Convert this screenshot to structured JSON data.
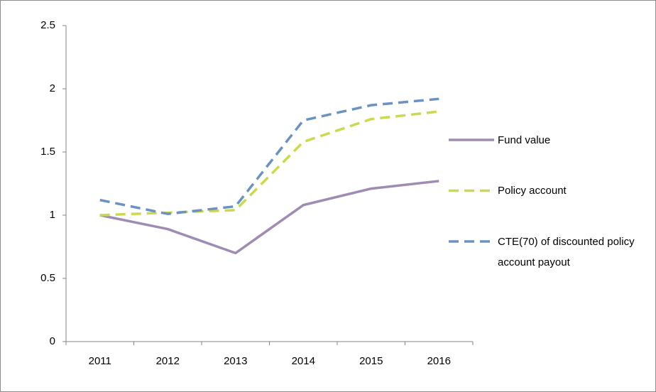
{
  "chart_data": {
    "type": "line",
    "categories": [
      "2011",
      "2012",
      "2013",
      "2014",
      "2015",
      "2016"
    ],
    "series": [
      {
        "name": "Fund value",
        "color": "#9f8bb3",
        "dash": false,
        "values": [
          1.0,
          0.89,
          0.7,
          1.08,
          1.21,
          1.27
        ]
      },
      {
        "name": "Policy account",
        "color": "#ccd84e",
        "dash": true,
        "values": [
          1.0,
          1.02,
          1.04,
          1.58,
          1.76,
          1.82
        ]
      },
      {
        "name": "CTE(70) of discounted policy account payout",
        "color": "#6a92c3",
        "dash": true,
        "values": [
          1.12,
          1.01,
          1.07,
          1.75,
          1.87,
          1.92
        ]
      }
    ],
    "ylim": [
      0,
      2.5
    ],
    "yticks": [
      0,
      0.5,
      1,
      1.5,
      2,
      2.5
    ],
    "grid": false,
    "legend": "right"
  }
}
